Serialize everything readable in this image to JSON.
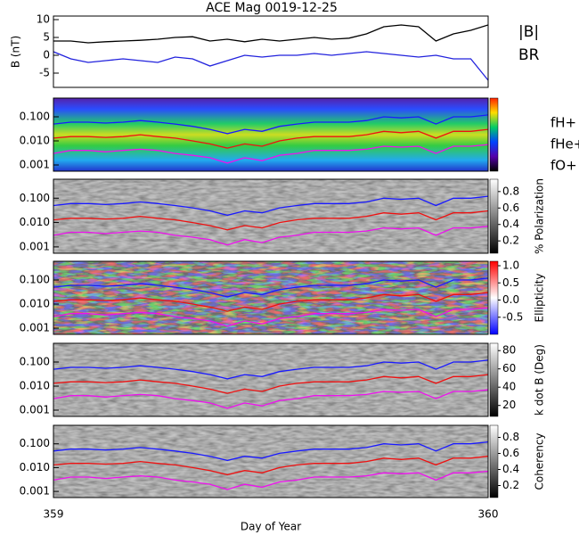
{
  "chart_data": [
    {
      "type": "line",
      "title": "ACE Mag 0019-12-25",
      "ylabel": "B (nT)",
      "x": [
        359.0,
        359.04,
        359.08,
        359.12,
        359.16,
        359.2,
        359.24,
        359.28,
        359.32,
        359.36,
        359.4,
        359.44,
        359.48,
        359.52,
        359.56,
        359.6,
        359.64,
        359.68,
        359.72,
        359.76,
        359.8,
        359.84,
        359.88,
        359.92,
        359.96,
        360.0
      ],
      "xlim": [
        359,
        360
      ],
      "ylim": [
        -9,
        11
      ],
      "yticks": [
        -5,
        0,
        5,
        10
      ],
      "series": [
        {
          "name": "|B|",
          "color": "#000000",
          "values": [
            4,
            4,
            3.5,
            3.8,
            4,
            4.2,
            4.5,
            5,
            5.2,
            4,
            4.5,
            3.8,
            4.5,
            4,
            4.5,
            5,
            4.5,
            4.8,
            6,
            8,
            8.5,
            8,
            4,
            6,
            7,
            8.5
          ]
        },
        {
          "name": "BR",
          "color": "#2222dd",
          "values": [
            1,
            -1,
            -2,
            -1.5,
            -1,
            -1.5,
            -2,
            -0.5,
            -1,
            -3,
            -1.5,
            0,
            -0.5,
            0,
            0,
            0.5,
            0,
            0.5,
            1,
            0.5,
            0,
            -0.5,
            0,
            -1,
            -1,
            -7
          ]
        }
      ]
    },
    {
      "type": "spectrogram",
      "colormap": "rainbow",
      "log_y": true,
      "ylim": [
        0.00055,
        0.6
      ],
      "yticks": [
        {
          "value": 0.001,
          "label": "0.001"
        },
        {
          "value": 0.01,
          "label": "0.010"
        },
        {
          "value": 0.1,
          "label": "0.100"
        }
      ],
      "series": [
        {
          "name": "fH+",
          "color": "#1a1aff",
          "values": [
            0.05,
            0.06,
            0.06,
            0.055,
            0.06,
            0.07,
            0.06,
            0.05,
            0.04,
            0.03,
            0.02,
            0.03,
            0.025,
            0.04,
            0.05,
            0.06,
            0.06,
            0.06,
            0.07,
            0.1,
            0.09,
            0.1,
            0.05,
            0.1,
            0.1,
            0.12
          ]
        },
        {
          "name": "fHe+",
          "color": "#ee1111",
          "values": [
            0.013,
            0.015,
            0.015,
            0.014,
            0.015,
            0.018,
            0.015,
            0.013,
            0.01,
            0.0075,
            0.005,
            0.0075,
            0.006,
            0.01,
            0.013,
            0.015,
            0.015,
            0.015,
            0.018,
            0.025,
            0.022,
            0.025,
            0.013,
            0.025,
            0.025,
            0.03
          ]
        },
        {
          "name": "fO+",
          "color": "#ee11ee",
          "values": [
            0.003,
            0.004,
            0.004,
            0.0035,
            0.004,
            0.0045,
            0.004,
            0.003,
            0.0025,
            0.002,
            0.0012,
            0.002,
            0.0015,
            0.0025,
            0.003,
            0.004,
            0.004,
            0.004,
            0.0045,
            0.006,
            0.0055,
            0.006,
            0.003,
            0.006,
            0.006,
            0.007
          ]
        }
      ]
    },
    {
      "type": "spectrogram",
      "colormap": "gray",
      "log_y": true,
      "colorbar_label": "% Polarization",
      "ylim": [
        0.00055,
        0.6
      ],
      "yticks": [
        {
          "value": 0.001,
          "label": "0.001"
        },
        {
          "value": 0.01,
          "label": "0.010"
        },
        {
          "value": 0.1,
          "label": "0.100"
        }
      ],
      "clim": [
        0.05,
        0.95
      ],
      "cticks": [
        0.2,
        0.4,
        0.6,
        0.8
      ]
    },
    {
      "type": "spectrogram",
      "colormap": "bwr",
      "log_y": true,
      "colorbar_label": "Ellipticity",
      "ylim": [
        0.00055,
        0.6
      ],
      "yticks": [
        {
          "value": 0.001,
          "label": "0.001"
        },
        {
          "value": 0.01,
          "label": "0.010"
        },
        {
          "value": 0.1,
          "label": "0.100"
        }
      ],
      "clim": [
        -1,
        1.13
      ],
      "cticks": [
        -0.5,
        {
          "value": 0,
          "label": "0.0"
        },
        0.5,
        {
          "value": 1,
          "label": "1.0"
        }
      ]
    },
    {
      "type": "spectrogram",
      "colormap": "gray",
      "log_y": true,
      "colorbar_label": "k dot B (Deg)",
      "ylim": [
        0.00055,
        0.6
      ],
      "yticks": [
        {
          "value": 0.001,
          "label": "0.001"
        },
        {
          "value": 0.01,
          "label": "0.010"
        },
        {
          "value": 0.1,
          "label": "0.100"
        }
      ],
      "clim": [
        8,
        88
      ],
      "cticks": [
        20,
        40,
        60,
        80
      ]
    },
    {
      "type": "spectrogram",
      "colormap": "gray",
      "log_y": true,
      "colorbar_label": "Coherency",
      "ylim": [
        0.00055,
        0.6
      ],
      "yticks": [
        {
          "value": 0.001,
          "label": "0.001"
        },
        {
          "value": 0.01,
          "label": "0.010"
        },
        {
          "value": 0.1,
          "label": "0.100"
        }
      ],
      "clim": [
        0.05,
        0.95
      ],
      "cticks": [
        0.2,
        0.4,
        0.6,
        0.8
      ],
      "xlabel": "Day of Year",
      "xticks": [
        359,
        360
      ]
    }
  ]
}
